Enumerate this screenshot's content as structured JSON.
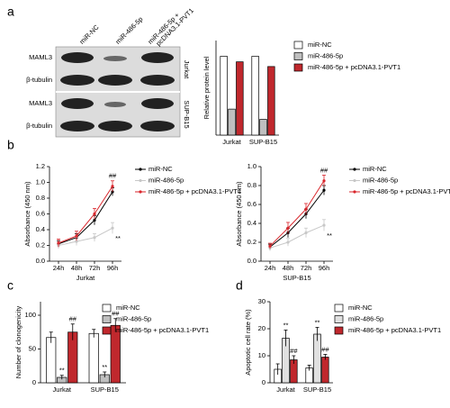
{
  "blot": {
    "lanes": [
      "miR-NC",
      "miR-486-5p",
      "miR-486-5p +",
      "pcDNA3.1-PVT1"
    ],
    "rows": [
      "MAML3",
      "β-tubulin",
      "MAML3",
      "β-tubulin"
    ],
    "cells": [
      "Jurkat",
      "SUP-B15"
    ]
  },
  "chart_data": [
    {
      "type": "bar",
      "panel": "a",
      "ylabel": "Relative protein level",
      "categories": [
        "Jurkat",
        "SUP-B15"
      ],
      "ylim": [
        0,
        1.2
      ],
      "yticks": [],
      "series": [
        {
          "name": "miR-NC",
          "color": "#ffffff",
          "values": [
            1,
            1
          ]
        },
        {
          "name": "miR-486-5p",
          "color": "#bfbfbf",
          "values": [
            0.33,
            0.2
          ]
        },
        {
          "name": "miR-486-5p + pcDNA3.1-PVT1",
          "color": "#c0282d",
          "values": [
            0.93,
            0.87
          ]
        }
      ],
      "annotations": []
    },
    {
      "type": "line",
      "panel": "b",
      "ylabel": "Absorbance (450 nm)",
      "xlabel": "Jurkat",
      "categories": [
        "24h",
        "48h",
        "72h",
        "96h"
      ],
      "ylim": [
        0,
        1.2
      ],
      "yticks": [
        {
          "value": 0,
          "label": "0.0"
        },
        {
          "value": 0.2,
          "label": "0.2"
        },
        {
          "value": 0.4,
          "label": "0.4"
        },
        {
          "value": 0.6,
          "label": "0.6"
        },
        {
          "value": 0.8,
          "label": "0.8"
        },
        {
          "value": 1,
          "label": "1.0"
        },
        {
          "value": 1.2,
          "label": "1.2"
        }
      ],
      "series": [
        {
          "name": "miR-NC",
          "color": "#000000",
          "values": [
            0.22,
            0.3,
            0.52,
            0.88
          ],
          "errors": [
            0.04,
            0.05,
            0.06,
            0.05
          ]
        },
        {
          "name": "miR-486-5p",
          "color": "#c8c8c8",
          "values": [
            0.2,
            0.25,
            0.3,
            0.42
          ],
          "errors": [
            0.04,
            0.05,
            0.05,
            0.07
          ]
        },
        {
          "name": "miR-486-5p + pcDNA3.1-PVT1",
          "color": "#d9252b",
          "values": [
            0.23,
            0.32,
            0.6,
            0.95
          ],
          "errors": [
            0.05,
            0.06,
            0.07,
            0.07
          ]
        }
      ],
      "annotations": [
        {
          "text": "##",
          "series": 2,
          "category": 3
        },
        {
          "text": "**",
          "series": 1,
          "category": 3
        }
      ]
    },
    {
      "type": "line",
      "ylabel": "Absorbance (450 nm)",
      "xlabel": "SUP-B15",
      "categories": [
        "24h",
        "48h",
        "72h",
        "96h"
      ],
      "ylim": [
        0,
        1
      ],
      "yticks": [
        {
          "value": 0,
          "label": "0.0"
        },
        {
          "value": 0.2,
          "label": "0.2"
        },
        {
          "value": 0.4,
          "label": "0.4"
        },
        {
          "value": 0.6,
          "label": "0.6"
        },
        {
          "value": 0.8,
          "label": "0.8"
        },
        {
          "value": 1,
          "label": "1.0"
        }
      ],
      "series": [
        {
          "name": "miR-NC",
          "color": "#000000",
          "values": [
            0.15,
            0.3,
            0.5,
            0.75
          ],
          "errors": [
            0.03,
            0.05,
            0.05,
            0.05
          ]
        },
        {
          "name": "miR-486-5p",
          "color": "#c8c8c8",
          "values": [
            0.14,
            0.2,
            0.3,
            0.38
          ],
          "errors": [
            0.03,
            0.04,
            0.05,
            0.06
          ]
        },
        {
          "name": "miR-486-5p + pcDNA3.1-PVT1",
          "color": "#d9252b",
          "values": [
            0.16,
            0.35,
            0.55,
            0.85
          ],
          "errors": [
            0.03,
            0.06,
            0.06,
            0.06
          ]
        }
      ],
      "annotations": [
        {
          "text": "##",
          "series": 2,
          "category": 3
        },
        {
          "text": "**",
          "series": 1,
          "category": 3
        }
      ]
    },
    {
      "type": "bar",
      "panel": "c",
      "ylabel": "Number of clonogenicity",
      "categories": [
        "Jurkat",
        "SUP-B15"
      ],
      "ylim": [
        0,
        120
      ],
      "yticks": [
        0,
        50,
        100
      ],
      "series": [
        {
          "name": "miR-NC",
          "color": "#ffffff",
          "values": [
            67,
            73
          ],
          "errors": [
            8,
            6
          ]
        },
        {
          "name": "miR-486-5p",
          "color": "#bfbfbf",
          "values": [
            8,
            12
          ],
          "errors": [
            3,
            4
          ]
        },
        {
          "name": "miR-486-5p + pcDNA3.1-PVT1",
          "color": "#c0282d",
          "values": [
            75,
            85
          ],
          "errors": [
            12,
            10
          ]
        }
      ],
      "annotations": [
        {
          "text": "**",
          "series": 1,
          "category": 0
        },
        {
          "text": "##",
          "series": 2,
          "category": 0
        },
        {
          "text": "**",
          "series": 1,
          "category": 1
        },
        {
          "text": "##",
          "series": 2,
          "category": 1
        }
      ]
    },
    {
      "type": "bar",
      "panel": "d",
      "ylabel": "Apoptotic cell rate (%)",
      "categories": [
        "Jurkat",
        "SUP-B15"
      ],
      "ylim": [
        0,
        30
      ],
      "yticks": [
        0,
        10,
        20,
        30
      ],
      "series": [
        {
          "name": "miR-NC",
          "color": "#ffffff",
          "values": [
            5,
            5.5
          ],
          "errors": [
            2,
            1
          ]
        },
        {
          "name": "miR-486-5p",
          "color": "#e0e0e0",
          "values": [
            16.5,
            18
          ],
          "errors": [
            3,
            2.5
          ]
        },
        {
          "name": "miR-486-5p + pcDNA3.1-PVT1",
          "color": "#c0282d",
          "values": [
            8.5,
            9.5
          ],
          "errors": [
            1.5,
            1
          ]
        }
      ],
      "annotations": [
        {
          "text": "**",
          "series": 1,
          "category": 0
        },
        {
          "text": "##",
          "series": 2,
          "category": 0
        },
        {
          "text": "**",
          "series": 1,
          "category": 1
        },
        {
          "text": "##",
          "series": 2,
          "category": 1
        }
      ]
    }
  ]
}
